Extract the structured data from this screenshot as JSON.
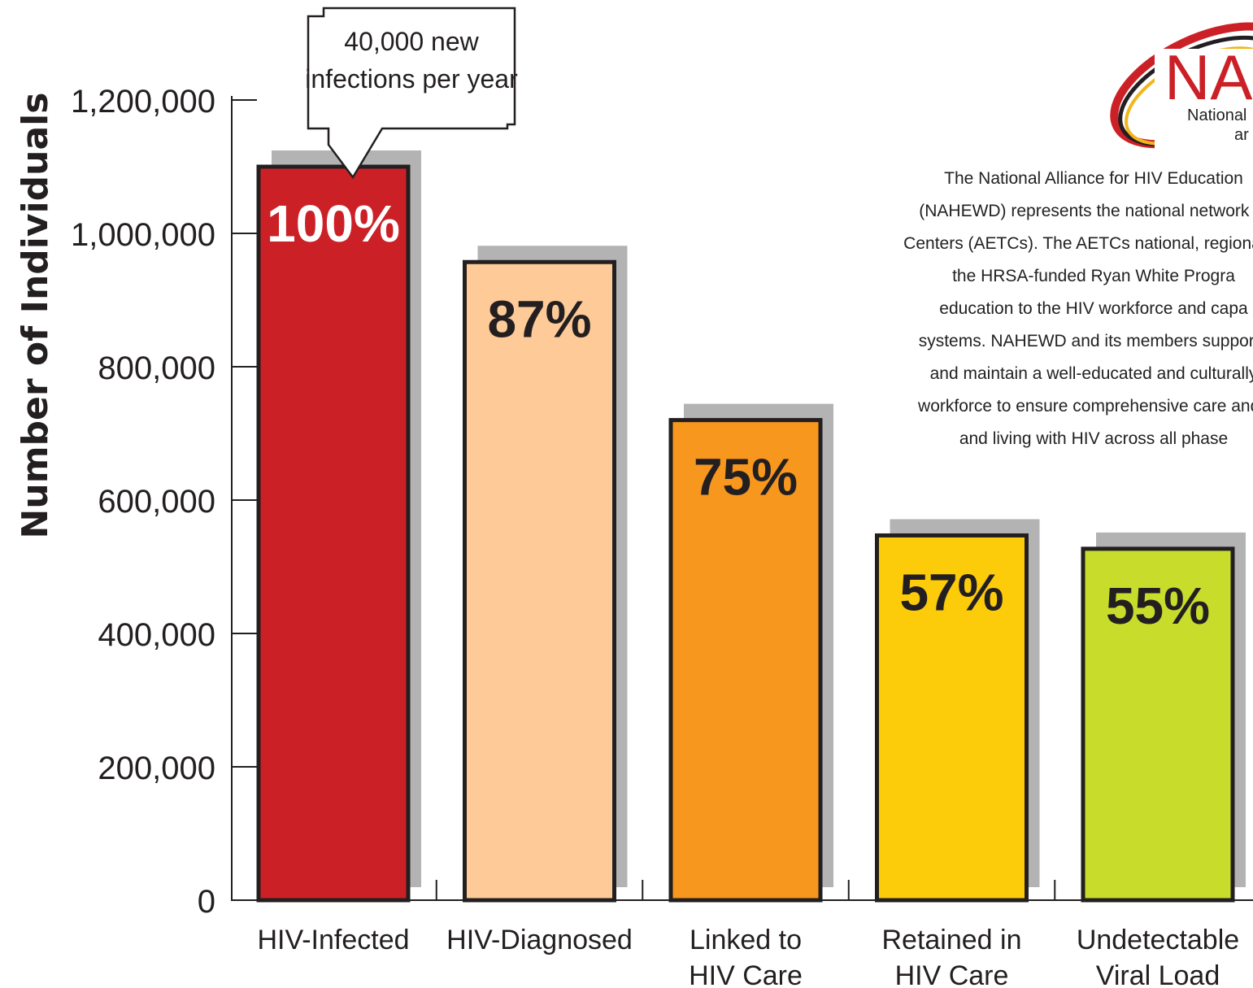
{
  "chart_data": {
    "type": "bar",
    "ylabel": "Number of Individuals",
    "xlabel": "",
    "ylim": [
      0,
      1200000
    ],
    "yticks": [
      0,
      200000,
      400000,
      600000,
      800000,
      1000000,
      1200000
    ],
    "ytick_labels": [
      "0",
      "200,000",
      "400,000",
      "600,000",
      "800,000",
      "1,000,000",
      "1,200,000"
    ],
    "grid": false,
    "categories": [
      [
        "HIV-Infected"
      ],
      [
        "HIV-Diagnosed"
      ],
      [
        "Linked to",
        "HIV Care"
      ],
      [
        "Retained in",
        "HIV Care"
      ],
      [
        "Undetectable",
        "Viral Load"
      ]
    ],
    "values": [
      1100000,
      957000,
      720000,
      547000,
      527000
    ],
    "data_labels": [
      "100%",
      "87%",
      "75%",
      "57%",
      "55%"
    ],
    "colors": [
      "#cc2027",
      "#fdca98",
      "#f7971d",
      "#fccb0a",
      "#c8dc2c"
    ],
    "annotation": {
      "lines": [
        "40,000 new",
        "infections per year"
      ],
      "target_category": "HIV-Infected"
    }
  },
  "logo": {
    "text_big": "NA",
    "text_small_1": "National",
    "text_small_2": "ar"
  },
  "description": {
    "lines": [
      "The National Alliance for HIV Education",
      "(NAHEWD) represents the national network of",
      "Centers (AETCs).  The AETCs national, regional, a",
      "the HRSA-funded Ryan White Progra",
      "education to the HIV workforce and capa",
      "systems. NAHEWD and its members support t",
      "and maintain a well-educated and culturally",
      "workforce to ensure comprehensive care and t",
      "and living with HIV across all phase"
    ]
  }
}
